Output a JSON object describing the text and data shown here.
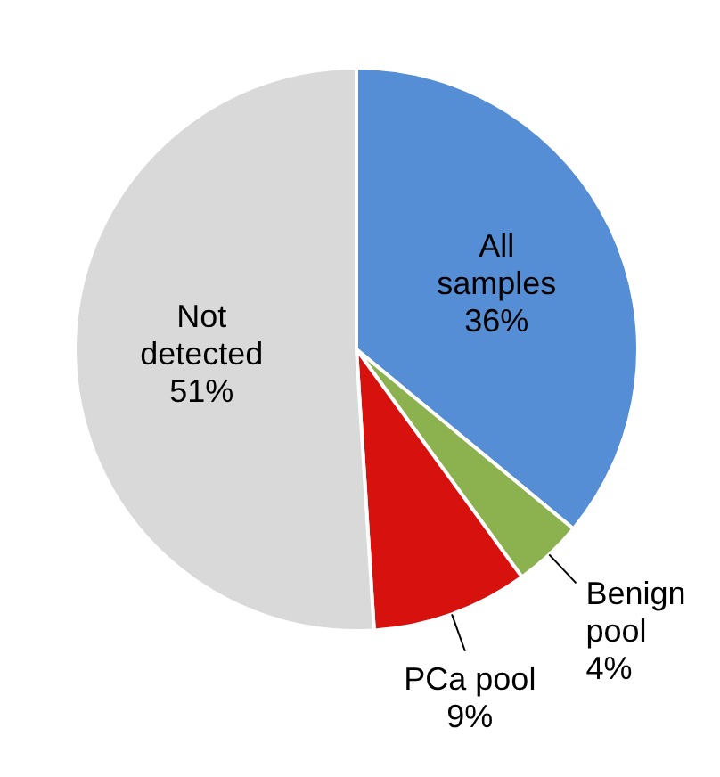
{
  "chart_data": {
    "type": "pie",
    "categories": [
      "All samples",
      "Benign pool",
      "PCa pool",
      "Not detected"
    ],
    "values": [
      36,
      4,
      9,
      51
    ],
    "colors": [
      "#558ed5",
      "#8cb24f",
      "#d7120e",
      "#d9d9d9"
    ],
    "value_labels": [
      "36%",
      "4%",
      "9%",
      "51%"
    ]
  }
}
